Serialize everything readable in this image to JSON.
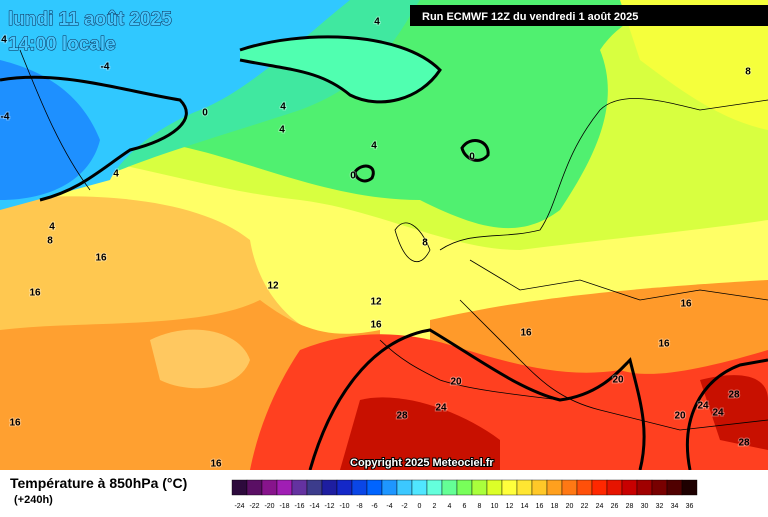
{
  "header": {
    "title": "lundi 11 août 2025",
    "time": "14:00 locale",
    "run": "Run ECMWF 12Z du vendredi 1 août 2025"
  },
  "copyright": "Copyright 2025 Meteociel.fr",
  "footer": {
    "title": "Température à 850hPa (°C)",
    "lead": "(+240h)"
  },
  "colorbar": {
    "labels": [
      "-24",
      "-22",
      "-20",
      "-18",
      "-16",
      "-14",
      "-12",
      "-10",
      "-8",
      "-6",
      "-4",
      "-2",
      "0",
      "2",
      "4",
      "6",
      "8",
      "10",
      "12",
      "14",
      "16",
      "18",
      "20",
      "22",
      "24",
      "26",
      "28",
      "30",
      "32",
      "34",
      "36"
    ],
    "colors": [
      "#2d0a3c",
      "#5a0f64",
      "#87148c",
      "#a01eb4",
      "#6432a0",
      "#3c3c8c",
      "#1e1ea0",
      "#1428c8",
      "#0a46e6",
      "#0064ff",
      "#1e96ff",
      "#3cc8ff",
      "#50e6ff",
      "#64ffdc",
      "#64ff96",
      "#78ff5a",
      "#aaff3c",
      "#dcff28",
      "#ffff3c",
      "#ffe632",
      "#ffc828",
      "#ffa01e",
      "#ff7814",
      "#ff500a",
      "#ff2800",
      "#e61400",
      "#c80000",
      "#a00000",
      "#780000",
      "#500000",
      "#1e0000"
    ]
  },
  "contour_labels": [
    "4",
    "-4",
    "-4",
    "0",
    "4",
    "4",
    "4",
    "0",
    "0",
    "4",
    "8",
    "4",
    "8",
    "8",
    "16",
    "16",
    "12",
    "12",
    "16",
    "16",
    "16",
    "16",
    "20",
    "20",
    "24",
    "28",
    "28",
    "24",
    "24",
    "20",
    "28",
    "16",
    "16",
    "4"
  ]
}
